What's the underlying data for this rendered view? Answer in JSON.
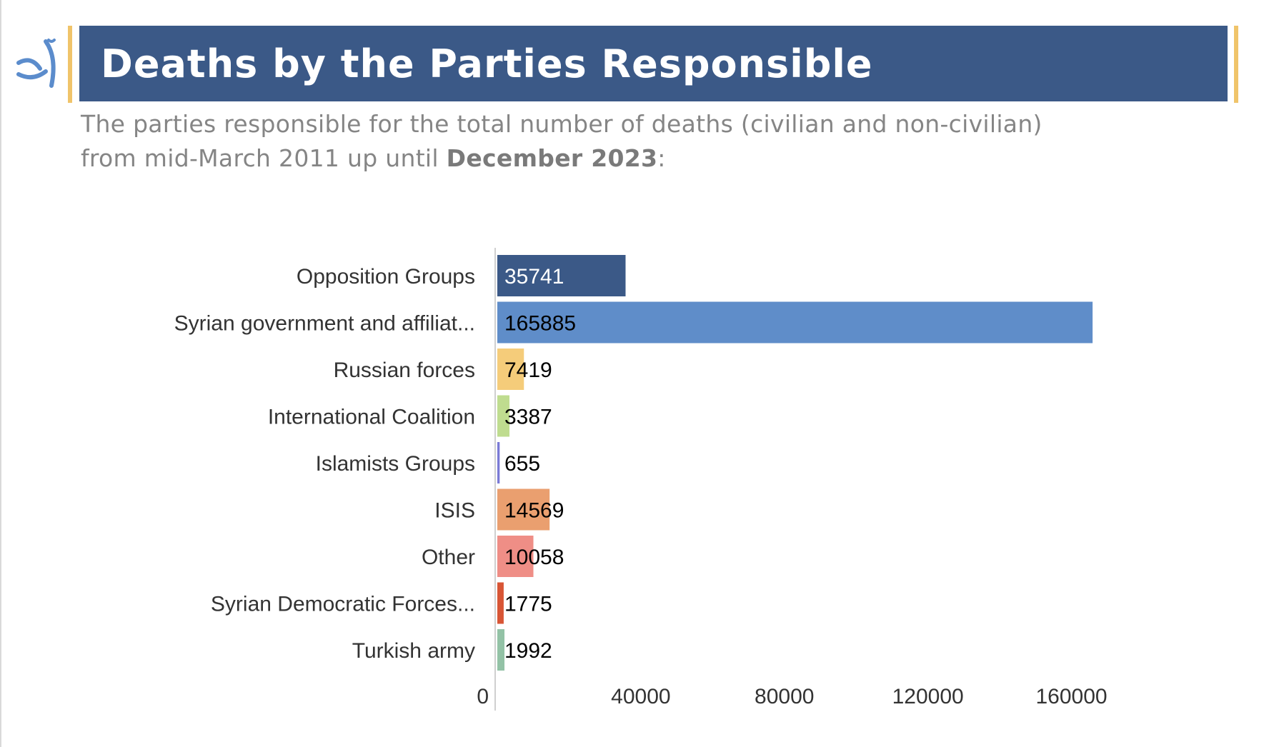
{
  "header": {
    "title": "Deaths by the Parties Responsible",
    "subtitle_line1": "The parties responsible for the total number of deaths (civilian and non-civilian)",
    "subtitle_line2_prefix": "from mid-March 2011 up until ",
    "subtitle_line2_bold": "December 2023",
    "subtitle_line2_suffix": ":"
  },
  "logo": {
    "icon": "org-logo-icon",
    "color": "#5b8ccc"
  },
  "colors": {
    "banner": "#3b5987",
    "accent": "#f0c46a"
  },
  "chart_data": {
    "type": "bar",
    "orientation": "horizontal",
    "title": "",
    "xlabel": "",
    "ylabel": "",
    "categories": [
      "Opposition Groups",
      "Syrian government and affiliat...",
      "Russian forces",
      "International Coalition",
      "Islamists Groups",
      "ISIS",
      "Other",
      "Syrian Democratic Forces...",
      "Turkish army"
    ],
    "values": [
      35741,
      165885,
      7419,
      3387,
      655,
      14569,
      10058,
      1775,
      1992
    ],
    "colors": [
      "#3b5987",
      "#5f8dc9",
      "#f5cc7a",
      "#bfdc8f",
      "#7a7ad6",
      "#ea9f6f",
      "#ef8e86",
      "#d85535",
      "#93c2a6"
    ],
    "value_label_colors": [
      "#ffffff",
      "#000000",
      "#000000",
      "#000000",
      "#000000",
      "#000000",
      "#000000",
      "#000000",
      "#000000"
    ],
    "xlim": [
      0,
      180000
    ],
    "xticks": [
      0,
      40000,
      80000,
      120000,
      160000
    ],
    "xtick_labels": [
      "0",
      "40000",
      "80000",
      "120000",
      "160000"
    ],
    "grid": false,
    "legend": "none"
  }
}
